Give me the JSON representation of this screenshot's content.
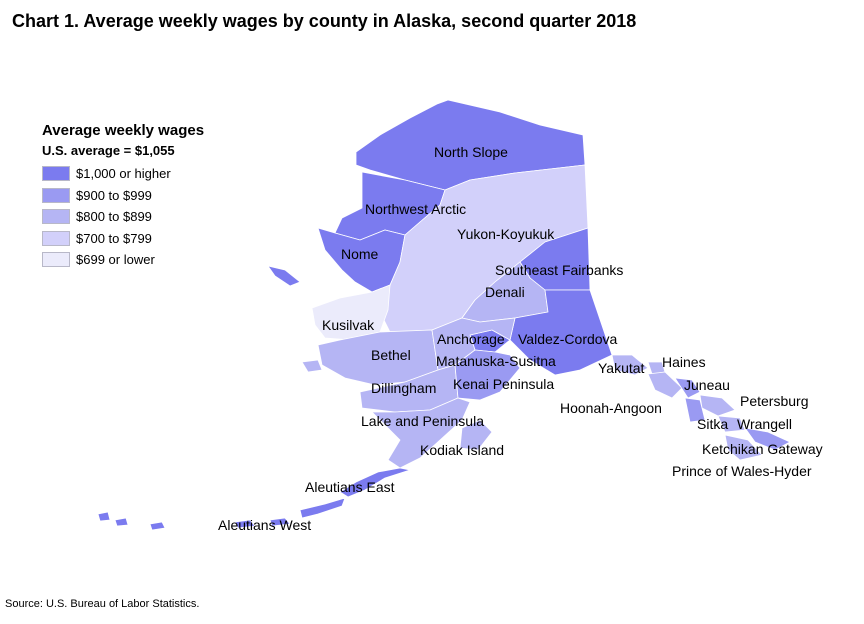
{
  "title": "Chart 1. Average weekly wages by county in Alaska, second quarter 2018",
  "legend": {
    "title": "Average weekly wages",
    "subtitle": "U.S. average = $1,055",
    "items": [
      {
        "label": "$1,000 or higher",
        "color": "#7b7bef"
      },
      {
        "label": "$900 to $999",
        "color": "#9a9af2"
      },
      {
        "label": "$800 to $899",
        "color": "#b5b5f4"
      },
      {
        "label": "$700 to $799",
        "color": "#d2d0fa"
      },
      {
        "label": "$699 or lower",
        "color": "#ebebfb"
      }
    ]
  },
  "regions": [
    {
      "name": "North Slope",
      "category": 0
    },
    {
      "name": "Northwest Arctic",
      "category": 0
    },
    {
      "name": "Nome",
      "category": 0
    },
    {
      "name": "Yukon-Koyukuk",
      "category": 3
    },
    {
      "name": "Southeast Fairbanks",
      "category": 0
    },
    {
      "name": "Denali",
      "category": 2
    },
    {
      "name": "Kusilvak",
      "category": 4
    },
    {
      "name": "Anchorage",
      "category": 0
    },
    {
      "name": "Valdez-Cordova",
      "category": 0
    },
    {
      "name": "Bethel",
      "category": 2
    },
    {
      "name": "Matanuska-Susitna",
      "category": 2
    },
    {
      "name": "Yakutat",
      "category": 2
    },
    {
      "name": "Haines",
      "category": 2
    },
    {
      "name": "Juneau",
      "category": 1
    },
    {
      "name": "Dillingham",
      "category": 2
    },
    {
      "name": "Kenai Peninsula",
      "category": 1
    },
    {
      "name": "Hoonah-Angoon",
      "category": 2
    },
    {
      "name": "Petersburg",
      "category": 2
    },
    {
      "name": "Lake and Peninsula",
      "category": 2
    },
    {
      "name": "Sitka",
      "category": 1
    },
    {
      "name": "Wrangell",
      "category": 2
    },
    {
      "name": "Kodiak Island",
      "category": 2
    },
    {
      "name": "Ketchikan Gateway",
      "category": 1
    },
    {
      "name": "Prince of Wales-Hyder",
      "category": 2
    },
    {
      "name": "Aleutians East",
      "category": 0
    },
    {
      "name": "Aleutians West",
      "category": 0
    }
  ],
  "source": "Source: U.S. Bureau of Labor Statistics."
}
